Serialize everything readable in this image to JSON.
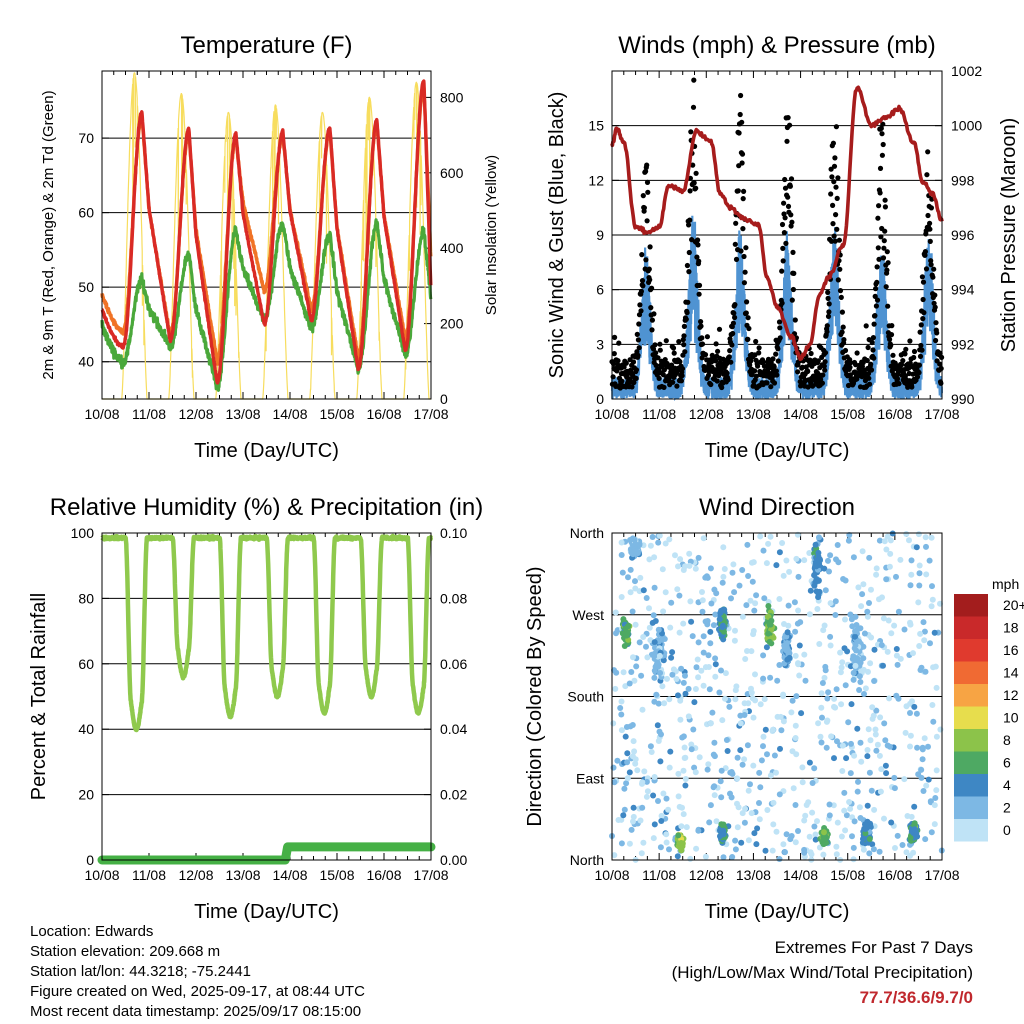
{
  "chart_data": [
    {
      "type": "line",
      "title": "Temperature (F)",
      "xlabel": "Time (Day/UTC)",
      "ylabel": "2m & 9m T (Red, Orange) & 2m Td (Green)",
      "y2label": "Solar Insolation (Yellow)",
      "x_ticks": [
        "10/08",
        "11/08",
        "12/08",
        "13/08",
        "14/08",
        "15/08",
        "16/08",
        "17/08"
      ],
      "ylim": [
        35,
        79
      ],
      "y_ticks": [
        40,
        50,
        60,
        70
      ],
      "y2lim": [
        0,
        870
      ],
      "y2_ticks": [
        0,
        200,
        400,
        600,
        800
      ],
      "grid": true,
      "series_colors": {
        "t2m": "#d92a25",
        "t9m": "#f07326",
        "td2m": "#4aa83a",
        "solar": "#f7dd5e"
      },
      "daily": {
        "t2m_high": [
          73.5,
          71.2,
          70.6,
          70.9,
          71.4,
          72.4,
          77.7
        ],
        "t2m_low": [
          42.0,
          42.8,
          37.1,
          45.0,
          45.5,
          39.0,
          41.5
        ],
        "t2m_end": 49.6,
        "t9m_high": [
          72.9,
          70.6,
          70.0,
          70.3,
          70.8,
          71.8,
          76.9
        ],
        "t9m_low": [
          44.0,
          43.4,
          40.0,
          49.5,
          47.0,
          40.5,
          43.0
        ],
        "t9m_end": 53.5,
        "td2m_high": [
          51.0,
          54.5,
          57.5,
          58.5,
          57.0,
          58.5,
          57.5
        ],
        "td2m_low": [
          40.0,
          42.0,
          36.6,
          45.5,
          44.5,
          39.0,
          41.0
        ],
        "td2m_end": 48.5,
        "solar_peak": [
          865,
          810,
          760,
          780,
          760,
          800,
          840
        ]
      }
    },
    {
      "type": "scatter",
      "title": "Winds (mph) & Pressure (mb)",
      "xlabel": "Time (Day/UTC)",
      "ylabel": "Sonic Wind & Gust (Blue, Black)",
      "y2label": "Station Pressure (Maroon)",
      "x_ticks": [
        "10/08",
        "11/08",
        "12/08",
        "13/08",
        "14/08",
        "15/08",
        "16/08",
        "17/08"
      ],
      "ylim": [
        0,
        18
      ],
      "y_ticks": [
        0,
        3,
        6,
        9,
        12,
        15
      ],
      "y2lim": [
        990,
        1002
      ],
      "y2_ticks": [
        990,
        992,
        994,
        996,
        998,
        1000,
        1002
      ],
      "grid": true,
      "series_colors": {
        "wind": "#4f93d2",
        "gust": "#000000",
        "pressure": "#a61c1c"
      },
      "daily_peak_wind": [
        7.5,
        9.5,
        9.0,
        8.5,
        9.0,
        8.0,
        8.5
      ],
      "daily_peak_gust": [
        12.0,
        16.0,
        15.0,
        15.5,
        15.5,
        14.5,
        12.5
      ],
      "pressure": {
        "x": [
          0.0,
          0.1,
          0.25,
          0.5,
          0.75,
          1.0,
          1.2,
          1.5,
          1.8,
          2.1,
          2.3,
          2.5,
          2.8,
          3.1,
          3.3,
          3.5,
          3.8,
          4.0,
          4.2,
          4.4,
          4.6,
          4.9,
          5.2,
          5.5,
          5.8,
          6.1,
          6.4,
          6.6,
          6.8,
          7.0
        ],
        "y": [
          999.3,
          999.9,
          999.4,
          996.3,
          996.1,
          996.3,
          997.8,
          997.6,
          999.8,
          999.4,
          997.5,
          997.0,
          996.6,
          996.4,
          994.4,
          993.4,
          992.3,
          991.5,
          992.0,
          993.8,
          994.5,
          995.6,
          1001.4,
          1000.0,
          1000.3,
          1000.6,
          999.4,
          997.9,
          997.5,
          996.5
        ]
      }
    },
    {
      "type": "line",
      "title": "Relative Humidity (%) & Precipitation (in)",
      "xlabel": "Time (Day/UTC)",
      "ylabel": "Percent & Total Rainfall",
      "x_ticks": [
        "10/08",
        "11/08",
        "12/08",
        "13/08",
        "14/08",
        "15/08",
        "16/08",
        "17/08"
      ],
      "ylim": [
        0,
        100
      ],
      "y_ticks": [
        0,
        20,
        40,
        60,
        80,
        100
      ],
      "y2lim": [
        0,
        0.1
      ],
      "y2_ticks": [
        "0.00",
        "0.02",
        "0.04",
        "0.06",
        "0.08",
        "0.10"
      ],
      "grid": true,
      "series_colors": {
        "rh": "#8fc94d",
        "precip": "#45b045"
      },
      "rh_daily_min": [
        40,
        56,
        44,
        50,
        45,
        50,
        45
      ],
      "rh_max": 98.5,
      "precip": {
        "x": [
          0.0,
          3.9,
          3.95,
          7.0
        ],
        "y": [
          0.0,
          0.0,
          0.004,
          0.004
        ]
      }
    },
    {
      "type": "scatter",
      "title": "Wind Direction",
      "xlabel": "Time (Day/UTC)",
      "ylabel": "Direction (Colored By Speed)",
      "x_ticks": [
        "10/08",
        "11/08",
        "12/08",
        "13/08",
        "14/08",
        "15/08",
        "16/08",
        "17/08"
      ],
      "y_ticks": [
        "North",
        "East",
        "South",
        "West",
        "North"
      ],
      "ylim": [
        0,
        360
      ],
      "grid": true,
      "colorbar": {
        "unit": "mph",
        "labels": [
          "20+",
          "18",
          "16",
          "14",
          "12",
          "10",
          "8",
          "6",
          "4",
          "2",
          "0"
        ],
        "colors": [
          "#a31d1d",
          "#c9292a",
          "#e03a2e",
          "#f06a33",
          "#f7a444",
          "#e7dd4d",
          "#8cc34a",
          "#4ea963",
          "#3e87c4",
          "#7db8e4",
          "#bfe3f6"
        ]
      }
    }
  ],
  "footer": {
    "location": "Location: Edwards",
    "elevation": "Station elevation: 209.668 m",
    "latlon": "Station lat/lon: 44.3218; -75.2441",
    "created": "Figure created on Wed, 2025-09-17, at 08:44 UTC",
    "recent": "Most recent data timestamp: 2025/09/17 08:15:00",
    "extremes_title": "Extremes For Past 7 Days",
    "extremes_sub": "(High/Low/Max Wind/Total Precipitation)",
    "extremes_value": "77.7/36.6/9.7/0"
  }
}
